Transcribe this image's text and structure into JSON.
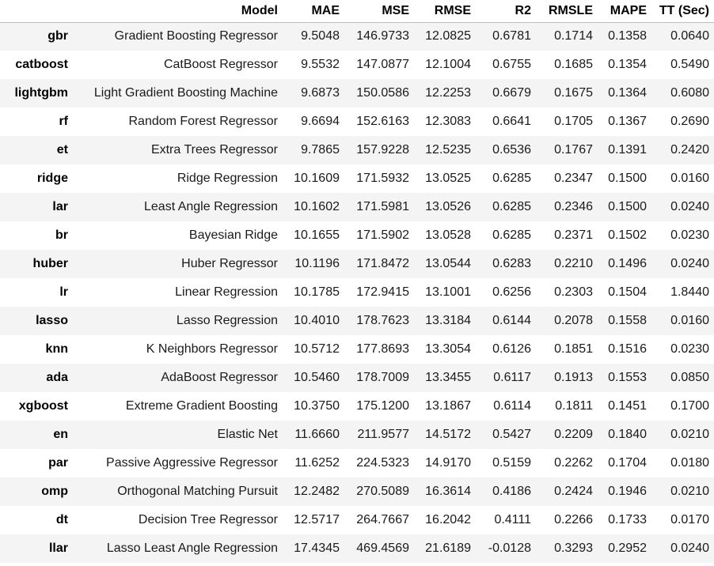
{
  "columns": [
    "",
    "Model",
    "MAE",
    "MSE",
    "RMSE",
    "R2",
    "RMSLE",
    "MAPE",
    "TT (Sec)"
  ],
  "rows": [
    {
      "key": "gbr",
      "model": "Gradient Boosting Regressor",
      "mae": "9.5048",
      "mse": "146.9733",
      "rmse": "12.0825",
      "r2": "0.6781",
      "rmsle": "0.1714",
      "mape": "0.1358",
      "tt": "0.0640"
    },
    {
      "key": "catboost",
      "model": "CatBoost Regressor",
      "mae": "9.5532",
      "mse": "147.0877",
      "rmse": "12.1004",
      "r2": "0.6755",
      "rmsle": "0.1685",
      "mape": "0.1354",
      "tt": "0.5490"
    },
    {
      "key": "lightgbm",
      "model": "Light Gradient Boosting Machine",
      "mae": "9.6873",
      "mse": "150.0586",
      "rmse": "12.2253",
      "r2": "0.6679",
      "rmsle": "0.1675",
      "mape": "0.1364",
      "tt": "0.6080"
    },
    {
      "key": "rf",
      "model": "Random Forest Regressor",
      "mae": "9.6694",
      "mse": "152.6163",
      "rmse": "12.3083",
      "r2": "0.6641",
      "rmsle": "0.1705",
      "mape": "0.1367",
      "tt": "0.2690"
    },
    {
      "key": "et",
      "model": "Extra Trees Regressor",
      "mae": "9.7865",
      "mse": "157.9228",
      "rmse": "12.5235",
      "r2": "0.6536",
      "rmsle": "0.1767",
      "mape": "0.1391",
      "tt": "0.2420"
    },
    {
      "key": "ridge",
      "model": "Ridge Regression",
      "mae": "10.1609",
      "mse": "171.5932",
      "rmse": "13.0525",
      "r2": "0.6285",
      "rmsle": "0.2347",
      "mape": "0.1500",
      "tt": "0.0160"
    },
    {
      "key": "lar",
      "model": "Least Angle Regression",
      "mae": "10.1602",
      "mse": "171.5981",
      "rmse": "13.0526",
      "r2": "0.6285",
      "rmsle": "0.2346",
      "mape": "0.1500",
      "tt": "0.0240"
    },
    {
      "key": "br",
      "model": "Bayesian Ridge",
      "mae": "10.1655",
      "mse": "171.5902",
      "rmse": "13.0528",
      "r2": "0.6285",
      "rmsle": "0.2371",
      "mape": "0.1502",
      "tt": "0.0230"
    },
    {
      "key": "huber",
      "model": "Huber Regressor",
      "mae": "10.1196",
      "mse": "171.8472",
      "rmse": "13.0544",
      "r2": "0.6283",
      "rmsle": "0.2210",
      "mape": "0.1496",
      "tt": "0.0240"
    },
    {
      "key": "lr",
      "model": "Linear Regression",
      "mae": "10.1785",
      "mse": "172.9415",
      "rmse": "13.1001",
      "r2": "0.6256",
      "rmsle": "0.2303",
      "mape": "0.1504",
      "tt": "1.8440"
    },
    {
      "key": "lasso",
      "model": "Lasso Regression",
      "mae": "10.4010",
      "mse": "178.7623",
      "rmse": "13.3184",
      "r2": "0.6144",
      "rmsle": "0.2078",
      "mape": "0.1558",
      "tt": "0.0160"
    },
    {
      "key": "knn",
      "model": "K Neighbors Regressor",
      "mae": "10.5712",
      "mse": "177.8693",
      "rmse": "13.3054",
      "r2": "0.6126",
      "rmsle": "0.1851",
      "mape": "0.1516",
      "tt": "0.0230"
    },
    {
      "key": "ada",
      "model": "AdaBoost Regressor",
      "mae": "10.5460",
      "mse": "178.7009",
      "rmse": "13.3455",
      "r2": "0.6117",
      "rmsle": "0.1913",
      "mape": "0.1553",
      "tt": "0.0850"
    },
    {
      "key": "xgboost",
      "model": "Extreme Gradient Boosting",
      "mae": "10.3750",
      "mse": "175.1200",
      "rmse": "13.1867",
      "r2": "0.6114",
      "rmsle": "0.1811",
      "mape": "0.1451",
      "tt": "0.1700"
    },
    {
      "key": "en",
      "model": "Elastic Net",
      "mae": "11.6660",
      "mse": "211.9577",
      "rmse": "14.5172",
      "r2": "0.5427",
      "rmsle": "0.2209",
      "mape": "0.1840",
      "tt": "0.0210"
    },
    {
      "key": "par",
      "model": "Passive Aggressive Regressor",
      "mae": "11.6252",
      "mse": "224.5323",
      "rmse": "14.9170",
      "r2": "0.5159",
      "rmsle": "0.2262",
      "mape": "0.1704",
      "tt": "0.0180"
    },
    {
      "key": "omp",
      "model": "Orthogonal Matching Pursuit",
      "mae": "12.2482",
      "mse": "270.5089",
      "rmse": "16.3614",
      "r2": "0.4186",
      "rmsle": "0.2424",
      "mape": "0.1946",
      "tt": "0.0210"
    },
    {
      "key": "dt",
      "model": "Decision Tree Regressor",
      "mae": "12.5717",
      "mse": "264.7667",
      "rmse": "16.2042",
      "r2": "0.4111",
      "rmsle": "0.2266",
      "mape": "0.1733",
      "tt": "0.0170"
    },
    {
      "key": "llar",
      "model": "Lasso Least Angle Regression",
      "mae": "17.4345",
      "mse": "469.4569",
      "rmse": "21.6189",
      "r2": "-0.0128",
      "rmsle": "0.3293",
      "mape": "0.2952",
      "tt": "0.0240"
    }
  ]
}
